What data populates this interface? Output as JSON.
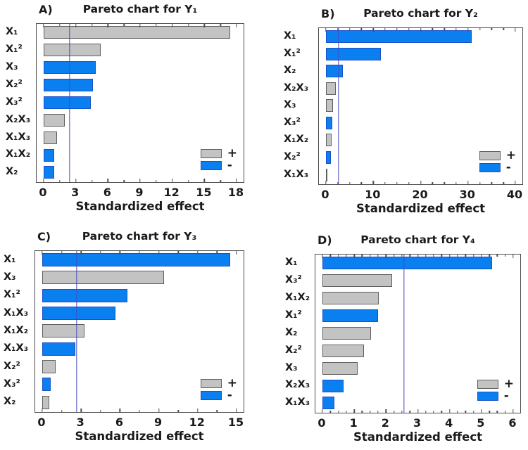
{
  "figure": {
    "xlabel": "Standardized effect",
    "legend": {
      "positive_label": "+",
      "negative_label": "-"
    }
  },
  "colors": {
    "positive": "#c3c3c3",
    "negative": "#0a80f0",
    "positive_border": "#5f5f5f",
    "negative_border": "#1b50c8",
    "axis": "#4d4d4d",
    "reference_line": "#4747c2",
    "text": "#1a1a1a"
  },
  "chart_data": [
    {
      "type": "bar",
      "orientation": "horizontal",
      "panel_label": "A)",
      "title": "Pareto chart for Y₁",
      "xlabel": "Standardized effect",
      "categories": [
        "X₁",
        "X₁²",
        "X₃",
        "X₂²",
        "X₃²",
        "X₂X₃",
        "X₁X₃",
        "X₁X₂",
        "X₂"
      ],
      "values": [
        17.4,
        5.35,
        4.85,
        4.6,
        4.4,
        1.95,
        1.25,
        1.0,
        1.0
      ],
      "signs": [
        "+",
        "+",
        "-",
        "-",
        "-",
        "+",
        "+",
        "-",
        "-"
      ],
      "xlim": [
        0,
        18
      ],
      "xticks": [
        0,
        3,
        6,
        9,
        12,
        15,
        18
      ],
      "minor_tick_step": 1.5,
      "reference_line": 2.4,
      "legend_position": "bottom-right",
      "grid": false
    },
    {
      "type": "bar",
      "orientation": "horizontal",
      "panel_label": "B)",
      "title": "Pareto chart for Y₂",
      "xlabel": "Standardized effect",
      "categories": [
        "X₁",
        "X₁²",
        "X₂",
        "X₂X₃",
        "X₃",
        "X₃²",
        "X₁X₂",
        "X₂²",
        "X₁X₃"
      ],
      "values": [
        30.8,
        11.6,
        3.6,
        2.1,
        1.45,
        1.35,
        1.25,
        1.0,
        0.1
      ],
      "signs": [
        "-",
        "-",
        "-",
        "+",
        "+",
        "-",
        "+",
        "-",
        "+"
      ],
      "xlim": [
        0,
        40
      ],
      "xticks": [
        0,
        10,
        20,
        30,
        40
      ],
      "minor_tick_step": 2.5,
      "reference_line": 2.7,
      "legend_position": "bottom-right",
      "grid": false
    },
    {
      "type": "bar",
      "orientation": "horizontal",
      "panel_label": "C)",
      "title": "Pareto chart for Y₃",
      "xlabel": "Standardized effect",
      "categories": [
        "X₁",
        "X₃",
        "X₁²",
        "X₁X₃",
        "X₁X₂",
        "X₁X₃",
        "X₂²",
        "X₃²",
        "X₂"
      ],
      "values": [
        14.5,
        9.4,
        6.55,
        5.65,
        3.25,
        2.55,
        1.05,
        0.65,
        0.55
      ],
      "signs": [
        "-",
        "+",
        "-",
        "-",
        "+",
        "-",
        "+",
        "-",
        "+"
      ],
      "xlim": [
        0,
        15
      ],
      "xticks": [
        0,
        3,
        6,
        9,
        12,
        15
      ],
      "minor_tick_step": 1.5,
      "reference_line": 2.65,
      "legend_position": "bottom-right",
      "grid": false
    },
    {
      "type": "bar",
      "orientation": "horizontal",
      "panel_label": "D)",
      "title": "Pareto chart for Y₄",
      "xlabel": "Standardized effect",
      "categories": [
        "X₁",
        "X₃²",
        "X₁X₂",
        "X₁²",
        "X₂",
        "X₂²",
        "X₃",
        "X₂X₃",
        "X₁X₃"
      ],
      "values": [
        5.33,
        2.2,
        1.77,
        1.74,
        1.53,
        1.3,
        1.1,
        0.66,
        0.37
      ],
      "signs": [
        "-",
        "+",
        "+",
        "-",
        "+",
        "+",
        "+",
        "-",
        "-"
      ],
      "xlim": [
        0,
        6
      ],
      "xticks": [
        0,
        1,
        2,
        3,
        4,
        5,
        6
      ],
      "minor_tick_step": 0.25,
      "reference_line": 2.57,
      "legend_position": "bottom-right",
      "grid": false
    }
  ]
}
